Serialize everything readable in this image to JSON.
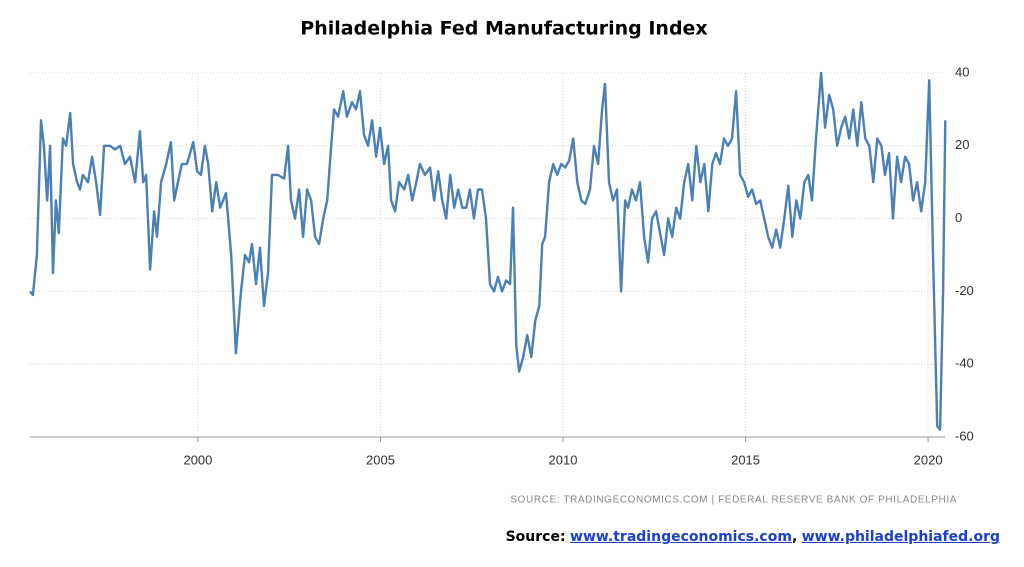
{
  "chart_data": {
    "type": "line",
    "title": "Philadelphia Fed Manufacturing Index",
    "source_note": "SOURCE: TRADINGECONOMICS.COM | FEDERAL RESERVE BANK OF PHILADELPHIA",
    "color": "#4a80b4",
    "grid": true,
    "xlim": [
      1995.4,
      2020.6
    ],
    "xticks": [
      2000,
      2005,
      2010,
      2015,
      2020
    ],
    "ylim": [
      -60,
      40
    ],
    "yticks": [
      -60,
      -40,
      -20,
      0,
      20,
      40
    ],
    "x": [
      1995.4,
      1995.48,
      1995.59,
      1995.7,
      1995.78,
      1995.87,
      1995.95,
      1996.03,
      1996.11,
      1996.19,
      1996.3,
      1996.39,
      1996.5,
      1996.58,
      1996.69,
      1996.77,
      1996.85,
      1996.99,
      1997.1,
      1997.21,
      1997.32,
      1997.43,
      1997.59,
      1997.73,
      1997.87,
      1998.0,
      1998.14,
      1998.28,
      1998.41,
      1998.5,
      1998.58,
      1998.69,
      1998.8,
      1998.88,
      1998.99,
      1999.13,
      1999.26,
      1999.35,
      1999.45,
      1999.56,
      1999.7,
      1999.87,
      1999.98,
      2000.08,
      2000.19,
      2000.28,
      2000.39,
      2000.5,
      2000.61,
      2000.77,
      2000.91,
      2001.04,
      2001.18,
      2001.29,
      2001.4,
      2001.48,
      2001.59,
      2001.7,
      2001.81,
      2001.92,
      2002.03,
      2002.19,
      2002.36,
      2002.47,
      2002.55,
      2002.66,
      2002.77,
      2002.88,
      2002.99,
      2003.1,
      2003.21,
      2003.32,
      2003.43,
      2003.54,
      2003.65,
      2003.73,
      2003.84,
      2003.98,
      2004.08,
      2004.22,
      2004.33,
      2004.44,
      2004.55,
      2004.66,
      2004.77,
      2004.88,
      2004.99,
      2005.1,
      2005.21,
      2005.29,
      2005.4,
      2005.51,
      2005.65,
      2005.76,
      2005.87,
      2005.98,
      2006.08,
      2006.22,
      2006.36,
      2006.47,
      2006.58,
      2006.69,
      2006.8,
      2006.91,
      2007.02,
      2007.13,
      2007.24,
      2007.35,
      2007.45,
      2007.56,
      2007.67,
      2007.78,
      2007.89,
      2008.0,
      2008.11,
      2008.22,
      2008.33,
      2008.44,
      2008.55,
      2008.63,
      2008.72,
      2008.8,
      2008.91,
      2009.02,
      2009.13,
      2009.24,
      2009.35,
      2009.43,
      2009.51,
      2009.62,
      2009.73,
      2009.84,
      2009.95,
      2010.06,
      2010.17,
      2010.28,
      2010.39,
      2010.5,
      2010.61,
      2010.74,
      2010.85,
      2010.96,
      2011.07,
      2011.15,
      2011.26,
      2011.37,
      2011.48,
      2011.59,
      2011.7,
      2011.78,
      2011.89,
      2012.0,
      2012.11,
      2012.22,
      2012.33,
      2012.44,
      2012.55,
      2012.66,
      2012.77,
      2012.88,
      2012.99,
      2013.1,
      2013.21,
      2013.32,
      2013.43,
      2013.54,
      2013.65,
      2013.76,
      2013.87,
      2013.98,
      2014.09,
      2014.19,
      2014.3,
      2014.41,
      2014.52,
      2014.63,
      2014.74,
      2014.85,
      2014.96,
      2015.07,
      2015.18,
      2015.29,
      2015.4,
      2015.51,
      2015.62,
      2015.73,
      2015.84,
      2015.95,
      2016.06,
      2016.17,
      2016.28,
      2016.39,
      2016.5,
      2016.61,
      2016.72,
      2016.82,
      2016.93,
      2017.07,
      2017.18,
      2017.29,
      2017.4,
      2017.51,
      2017.62,
      2017.73,
      2017.84,
      2017.95,
      2018.06,
      2018.17,
      2018.28,
      2018.39,
      2018.5,
      2018.61,
      2018.72,
      2018.82,
      2018.93,
      2019.04,
      2019.15,
      2019.26,
      2019.37,
      2019.48,
      2019.59,
      2019.7,
      2019.81,
      2019.92,
      2020.03,
      2020.14,
      2020.25,
      2020.33,
      2020.41,
      2020.47
    ],
    "values": [
      -20,
      -21,
      -10,
      27,
      20,
      5,
      20,
      -15,
      5,
      -4,
      22,
      20,
      29,
      15,
      10,
      8,
      12,
      10,
      17,
      10,
      1,
      20,
      20,
      19,
      20,
      15,
      17,
      10,
      24,
      10,
      12,
      -14,
      2,
      -5,
      10,
      15,
      21,
      5,
      10,
      15,
      15,
      21,
      13,
      12,
      20,
      15,
      2,
      10,
      3,
      7,
      -10,
      -37,
      -20,
      -10,
      -12,
      -7,
      -18,
      -8,
      -24,
      -15,
      12,
      12,
      11,
      20,
      5,
      0,
      8,
      -5,
      8,
      5,
      -5,
      -7,
      0,
      5,
      20,
      30,
      28,
      35,
      28,
      32,
      30,
      35,
      23,
      20,
      27,
      17,
      25,
      15,
      20,
      5,
      2,
      10,
      8,
      12,
      5,
      10,
      15,
      12,
      14,
      5,
      13,
      5,
      0,
      12,
      3,
      8,
      3,
      3,
      8,
      0,
      8,
      8,
      0,
      -18,
      -20,
      -16,
      -20,
      -17,
      -18,
      3,
      -35,
      -42,
      -38,
      -32,
      -38,
      -28,
      -24,
      -7,
      -5,
      10,
      15,
      12,
      15,
      14,
      16,
      22,
      10,
      5,
      4,
      8,
      20,
      15,
      30,
      37,
      10,
      5,
      8,
      -20,
      5,
      3,
      8,
      5,
      10,
      -5,
      -12,
      0,
      2,
      -4,
      -10,
      0,
      -5,
      3,
      0,
      10,
      15,
      5,
      20,
      10,
      15,
      2,
      15,
      18,
      15,
      22,
      20,
      22,
      35,
      12,
      10,
      6,
      8,
      4,
      5,
      0,
      -5,
      -8,
      -3,
      -8,
      0,
      9,
      -5,
      5,
      0,
      10,
      12,
      5,
      22,
      40,
      25,
      34,
      30,
      20,
      25,
      28,
      22,
      30,
      20,
      32,
      22,
      20,
      10,
      22,
      20,
      12,
      18,
      0,
      17,
      10,
      17,
      15,
      5,
      10,
      2,
      10,
      38,
      -12,
      -57,
      -58,
      -20,
      27
    ]
  },
  "footer": {
    "label": "Source:",
    "links": [
      "www.tradingeconomics.com",
      "www.philadelphiafed.org"
    ],
    "separator": ","
  }
}
